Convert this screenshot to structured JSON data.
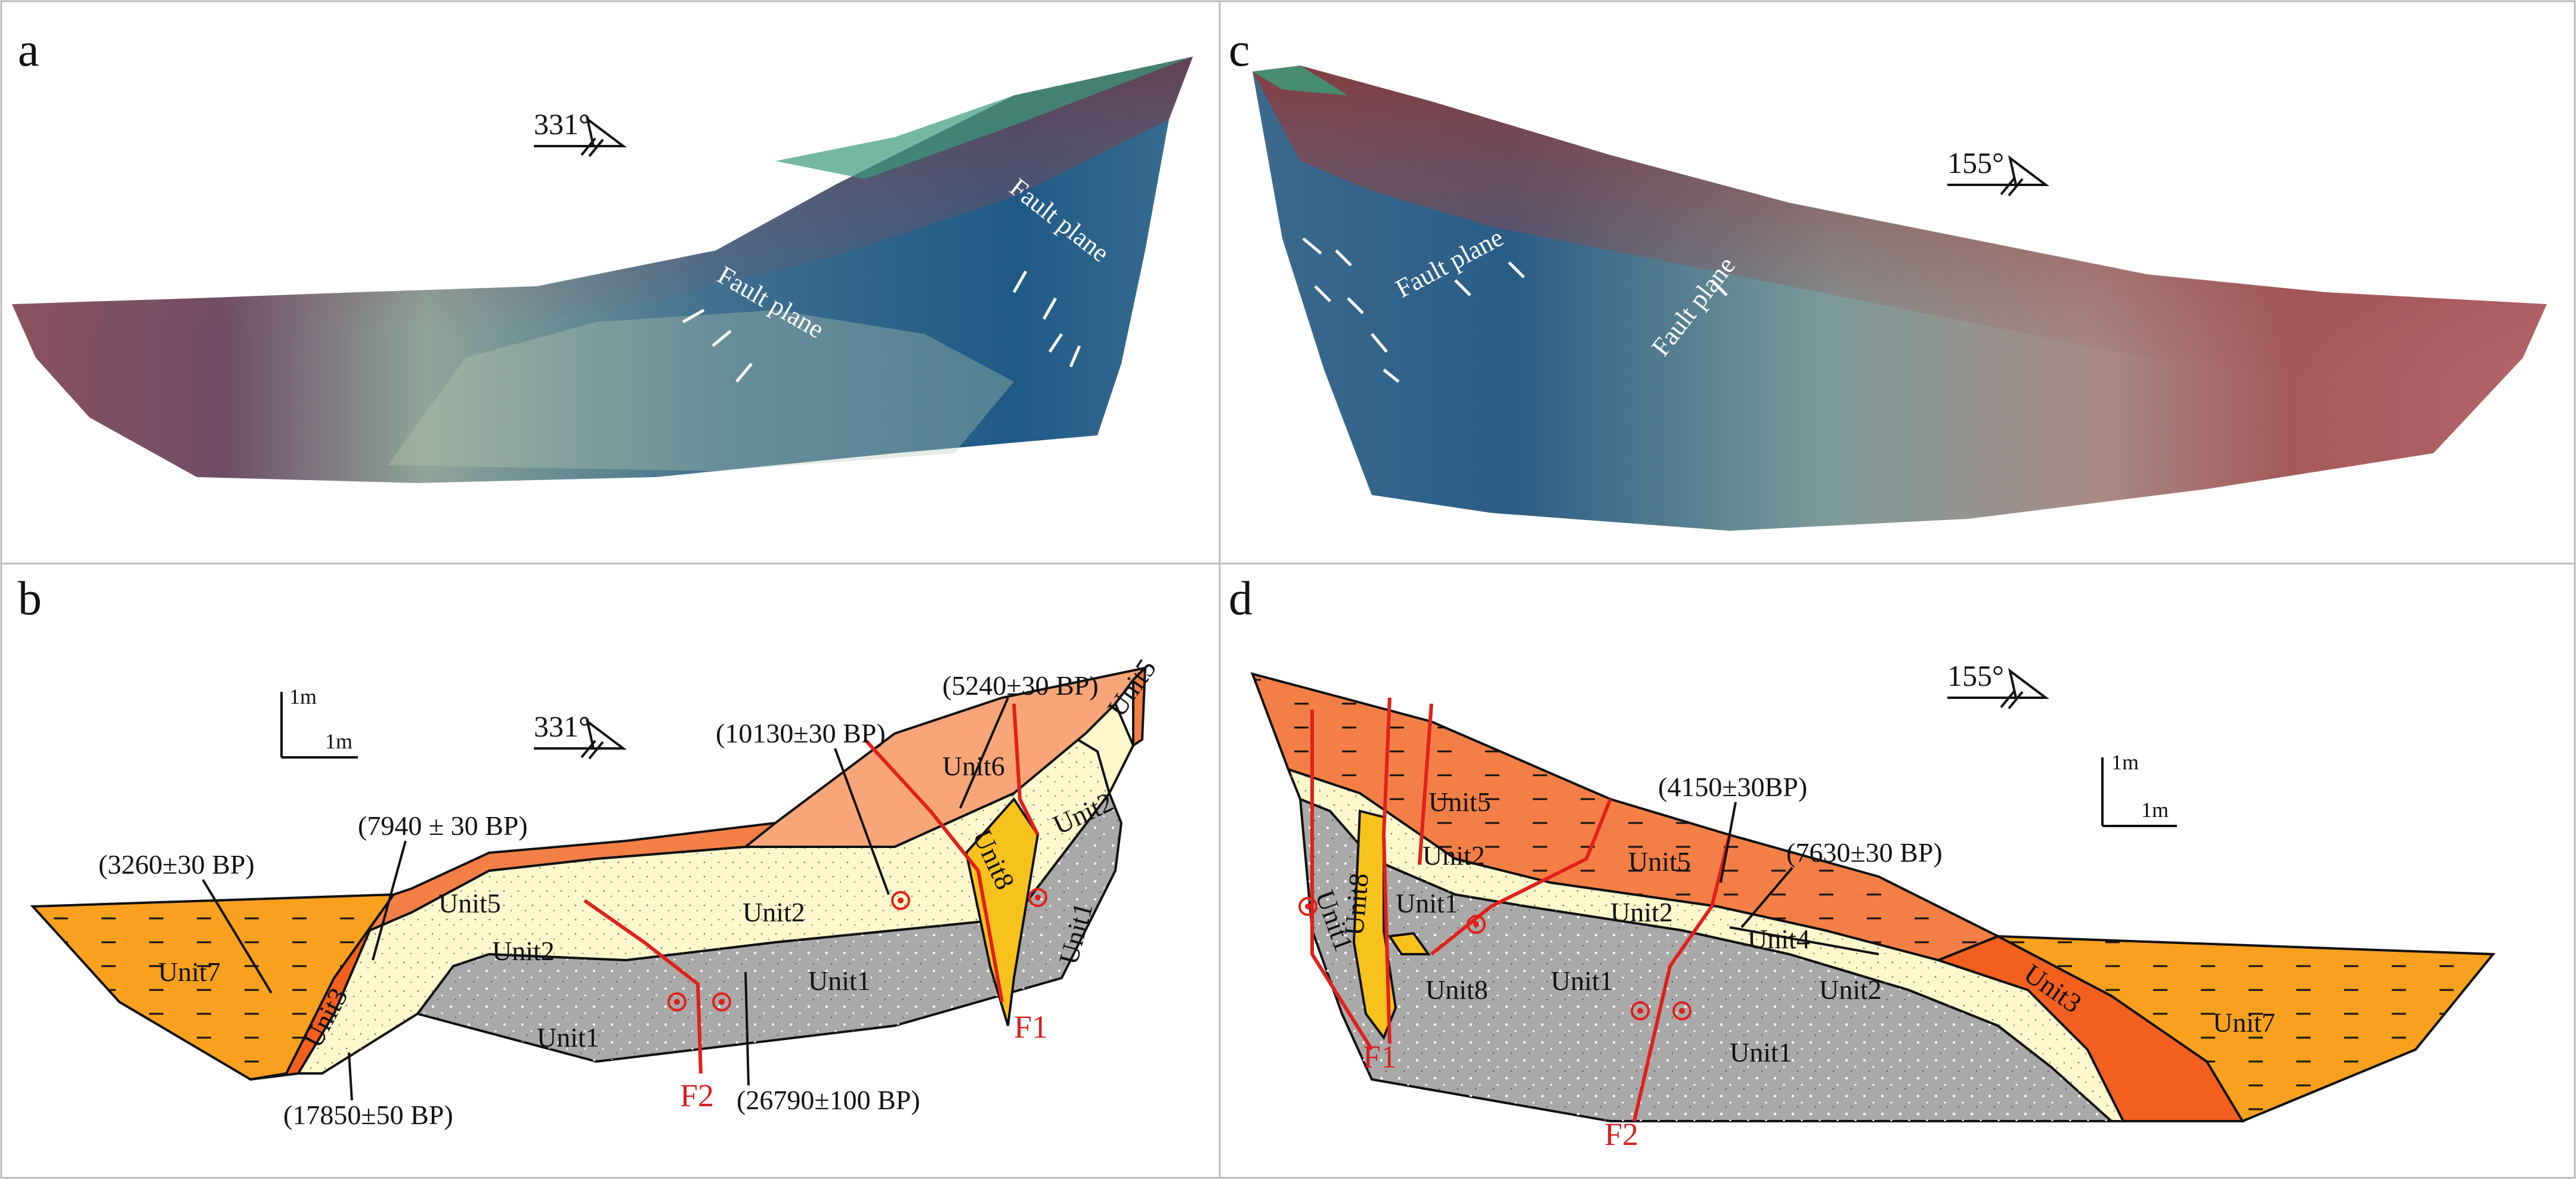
{
  "panels": [
    {
      "id": "a",
      "label": "a"
    },
    {
      "id": "b",
      "label": "b"
    },
    {
      "id": "c",
      "label": "c"
    },
    {
      "id": "d",
      "label": "d"
    }
  ],
  "photos": {
    "a": {
      "orientation": "331°",
      "fault_labels": [
        "Fault plane",
        "Fault plane"
      ]
    },
    "c": {
      "orientation": "155°",
      "fault_labels": [
        "Fault plane",
        "Fault plane"
      ]
    }
  },
  "logs": {
    "b": {
      "orientation": "331°",
      "scale_vertical": "1m",
      "scale_horizontal": "1m",
      "units": [
        "Unit7",
        "Unit3",
        "Unit5",
        "Unit2",
        "Unit2",
        "Unit6",
        "Unit2",
        "Unit5",
        "Unit8",
        "Unit1",
        "Unit1",
        "Unit1"
      ],
      "faults": [
        "F1",
        "F2"
      ],
      "ages": [
        "(5240±30 BP)",
        "(10130±30 BP)",
        "(7940 ± 30 BP)",
        "(3260±30  BP)",
        "(17850±50 BP)",
        "(26790±100 BP)"
      ]
    },
    "d": {
      "orientation": "155°",
      "scale_vertical": "1m",
      "scale_horizontal": "1m",
      "units": [
        "Unit5",
        "Unit1",
        "Unit8",
        "Unit2",
        "Unit1",
        "Unit5",
        "Unit2",
        "Unit4",
        "Unit8",
        "Unit1",
        "Unit2",
        "Unit3",
        "Unit7",
        "Unit1"
      ],
      "faults": [
        "F1",
        "F2"
      ],
      "ages": [
        "(4150±30BP)",
        "(7630±30 BP)"
      ]
    }
  },
  "colors": {
    "unit1": "#a9a9a9",
    "unit2": "#fff8cc",
    "unit3": "#f25f1f",
    "unit5": "#f47f46",
    "unit6": "#f8a679",
    "unit7": "#f9a11e",
    "unit8": "#f7c21b",
    "fault": "#e0201b"
  }
}
